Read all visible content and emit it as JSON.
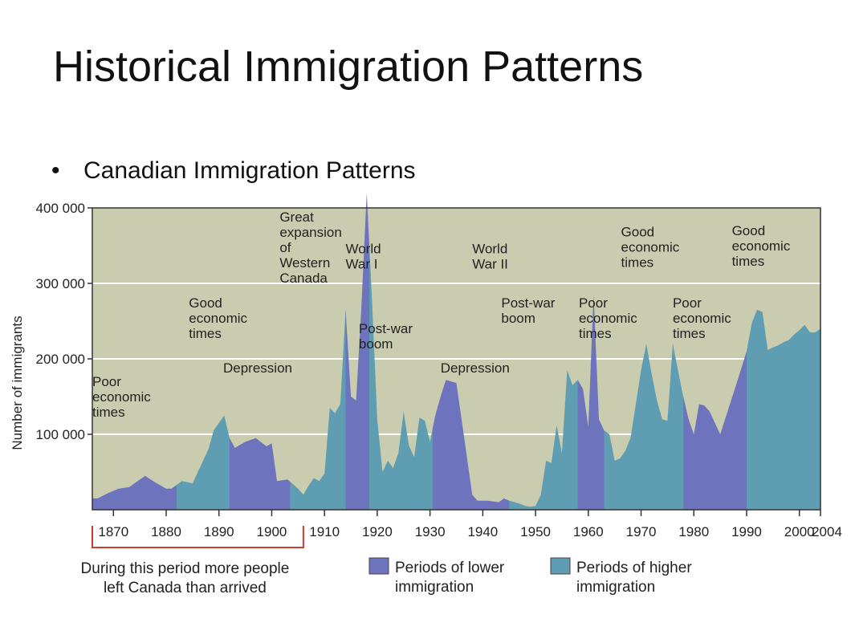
{
  "slide": {
    "title": "Historical Immigration Patterns",
    "bullet": "Canadian Immigration Patterns"
  },
  "colors": {
    "plot_background": "#c9ccae",
    "lower": "#6e73bd",
    "higher": "#5e9db2",
    "bracket": "#d23a2f",
    "gridline": "#ffffff"
  },
  "chart_data": {
    "type": "area",
    "xlim": [
      1866,
      2004
    ],
    "ylim": [
      0,
      400000
    ],
    "ylabel": "Number of immigrants",
    "y_ticks": [
      {
        "value": 100000,
        "label": "100 000"
      },
      {
        "value": 200000,
        "label": "200 000"
      },
      {
        "value": 300000,
        "label": "300 000"
      },
      {
        "value": 400000,
        "label": "400 000"
      }
    ],
    "x_ticks": [
      {
        "value": 1870,
        "label": "1870"
      },
      {
        "value": 1880,
        "label": "1880"
      },
      {
        "value": 1890,
        "label": "1890"
      },
      {
        "value": 1900,
        "label": "1900"
      },
      {
        "value": 1910,
        "label": "1910"
      },
      {
        "value": 1920,
        "label": "1920"
      },
      {
        "value": 1930,
        "label": "1930"
      },
      {
        "value": 1940,
        "label": "1940"
      },
      {
        "value": 1950,
        "label": "1950"
      },
      {
        "value": 1960,
        "label": "1960"
      },
      {
        "value": 1970,
        "label": "1970"
      },
      {
        "value": 1980,
        "label": "1980"
      },
      {
        "value": 1990,
        "label": "1990"
      },
      {
        "value": 2000,
        "label": "2000"
      },
      {
        "value": 2004,
        "label": "2004"
      }
    ],
    "series": {
      "x": [
        1866,
        1867,
        1869,
        1871,
        1873,
        1876,
        1878,
        1880,
        1881,
        1883,
        1885,
        1886,
        1888,
        1889,
        1891,
        1892,
        1893,
        1895,
        1897,
        1899,
        1900,
        1901,
        1903,
        1905,
        1906,
        1907,
        1908,
        1909,
        1910,
        1911,
        1912,
        1913,
        1914,
        1915,
        1916,
        1917,
        1918,
        1919,
        1920,
        1921,
        1922,
        1923,
        1924,
        1925,
        1926,
        1927,
        1928,
        1929,
        1930,
        1931,
        1932,
        1933,
        1935,
        1937,
        1938,
        1939,
        1941,
        1943,
        1944,
        1945,
        1946,
        1947,
        1948,
        1949,
        1950,
        1951,
        1952,
        1953,
        1954,
        1955,
        1956,
        1957,
        1958,
        1959,
        1960,
        1961,
        1962,
        1963,
        1964,
        1965,
        1966,
        1967,
        1968,
        1969,
        1970,
        1971,
        1972,
        1973,
        1974,
        1975,
        1976,
        1977,
        1978,
        1979,
        1980,
        1981,
        1982,
        1983,
        1985,
        1988,
        1990,
        1991,
        1992,
        1993,
        1994,
        1995,
        1996,
        1997,
        1998,
        1999,
        2000,
        2001,
        2002,
        2003,
        2004
      ],
      "y": [
        15000,
        15000,
        22000,
        28000,
        30000,
        45000,
        36000,
        28000,
        28000,
        38000,
        35000,
        50000,
        80000,
        105000,
        125000,
        95000,
        82000,
        90000,
        95000,
        84000,
        88000,
        38000,
        40000,
        28000,
        20000,
        32000,
        42000,
        38000,
        48000,
        135000,
        128000,
        140000,
        265000,
        150000,
        145000,
        270000,
        420000,
        280000,
        120000,
        50000,
        65000,
        55000,
        75000,
        130000,
        85000,
        70000,
        122000,
        118000,
        90000,
        125000,
        150000,
        172000,
        168000,
        70000,
        20000,
        12000,
        12000,
        10000,
        15000,
        12000,
        10000,
        8000,
        5000,
        4000,
        5000,
        20000,
        65000,
        62000,
        112000,
        75000,
        185000,
        165000,
        172000,
        160000,
        110000,
        285000,
        120000,
        105000,
        100000,
        65000,
        68000,
        78000,
        95000,
        140000,
        185000,
        220000,
        180000,
        145000,
        120000,
        118000,
        220000,
        185000,
        150000,
        120000,
        100000,
        140000,
        138000,
        130000,
        100000,
        165000,
        210000,
        248000,
        265000,
        262000,
        212000,
        215000,
        218000,
        222000,
        225000,
        232000,
        238000,
        245000,
        235000,
        235000,
        240000
      ]
    },
    "periods": [
      {
        "type": "lower",
        "start": 1866,
        "end": 1882
      },
      {
        "type": "higher",
        "start": 1882,
        "end": 1892
      },
      {
        "type": "lower",
        "start": 1892,
        "end": 1903.5
      },
      {
        "type": "higher",
        "start": 1903.5,
        "end": 1914
      },
      {
        "type": "lower",
        "start": 1914,
        "end": 1918.5
      },
      {
        "type": "higher",
        "start": 1918.5,
        "end": 1930.5
      },
      {
        "type": "lower",
        "start": 1930.5,
        "end": 1945
      },
      {
        "type": "higher",
        "start": 1945,
        "end": 1958
      },
      {
        "type": "lower",
        "start": 1958,
        "end": 1963
      },
      {
        "type": "higher",
        "start": 1963,
        "end": 1978
      },
      {
        "type": "lower",
        "start": 1978,
        "end": 1990
      },
      {
        "type": "higher",
        "start": 1990,
        "end": 2004
      }
    ],
    "annotations": [
      {
        "lines": [
          "Poor",
          "economic",
          "times"
        ],
        "x": 1866,
        "y": 164000
      },
      {
        "lines": [
          "Good",
          "economic",
          "times"
        ],
        "x": 1884.3,
        "y": 268000
      },
      {
        "lines": [
          "Depression"
        ],
        "x": 1890.8,
        "y": 182000
      },
      {
        "lines": [
          "Great",
          "expansion",
          "of",
          "Western",
          "Canada"
        ],
        "x": 1901.5,
        "y": 382000
      },
      {
        "lines": [
          "World",
          "War I"
        ],
        "x": 1914,
        "y": 340000
      },
      {
        "lines": [
          "Post-war",
          "boom"
        ],
        "x": 1916.5,
        "y": 234000
      },
      {
        "lines": [
          "Depression"
        ],
        "x": 1932,
        "y": 182000
      },
      {
        "lines": [
          "World",
          "War II"
        ],
        "x": 1938,
        "y": 340000
      },
      {
        "lines": [
          "Post-war",
          "boom"
        ],
        "x": 1943.5,
        "y": 268000
      },
      {
        "lines": [
          "Poor",
          "economic",
          "times"
        ],
        "x": 1958.2,
        "y": 268000
      },
      {
        "lines": [
          "Good",
          "economic",
          "times"
        ],
        "x": 1966.2,
        "y": 362000
      },
      {
        "lines": [
          "Poor",
          "economic",
          "times"
        ],
        "x": 1976,
        "y": 268000
      },
      {
        "lines": [
          "Good",
          "economic",
          "times"
        ],
        "x": 1987.2,
        "y": 364000
      }
    ],
    "bracket": {
      "start": 1866,
      "end": 1906,
      "label": [
        "During this period more people",
        "left Canada than arrived"
      ]
    },
    "legend": [
      {
        "key": "lower",
        "label": [
          "Periods of lower",
          "immigration"
        ]
      },
      {
        "key": "higher",
        "label": [
          "Periods of higher",
          "immigration"
        ]
      }
    ]
  }
}
